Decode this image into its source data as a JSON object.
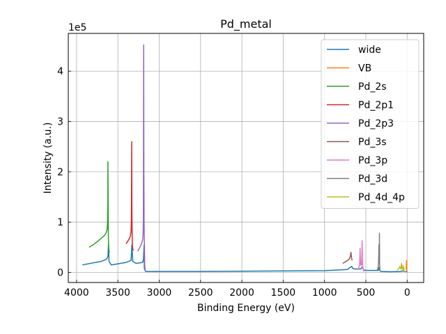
{
  "chart_data": {
    "type": "line",
    "title": "Pd_metal",
    "xlabel": "Binding Energy (eV)",
    "ylabel": "Intensity (a.u.)",
    "y_offset_label": "1e5",
    "xlim": [
      4100,
      -200
    ],
    "ylim": [
      -0.2,
      4.75
    ],
    "x_reversed": true,
    "x_ticks": [
      4000,
      3500,
      3000,
      2500,
      2000,
      1500,
      1000,
      500,
      0
    ],
    "x_tick_labels": [
      "4000",
      "3500",
      "3000",
      "2500",
      "2000",
      "1500",
      "1000",
      "500",
      "0"
    ],
    "y_ticks": [
      0,
      1,
      2,
      3,
      4
    ],
    "y_tick_labels": [
      "0",
      "1",
      "2",
      "3",
      "4"
    ],
    "grid": true,
    "legend_position": "top-right",
    "y_units_note": "values in units of 1e5",
    "series": [
      {
        "name": "wide",
        "color": "#1f77b4",
        "x": [
          3930,
          3800,
          3700,
          3640,
          3620,
          3613,
          3608,
          3580,
          3400,
          3340,
          3330,
          3320,
          3280,
          3200,
          3190,
          3183,
          3180,
          3170,
          3160,
          3100,
          2500,
          2000,
          1500,
          1000,
          720,
          700,
          670,
          660,
          640,
          560,
          540,
          530,
          500,
          350,
          340,
          335,
          330,
          320,
          200,
          80,
          60,
          40,
          20,
          0
        ],
        "y": [
          0.15,
          0.19,
          0.22,
          0.26,
          0.32,
          0.6,
          0.22,
          0.15,
          0.2,
          0.24,
          0.55,
          0.22,
          0.18,
          0.2,
          0.26,
          0.55,
          0.08,
          0.03,
          0.02,
          0.02,
          0.02,
          0.025,
          0.03,
          0.035,
          0.06,
          0.09,
          0.12,
          0.08,
          0.07,
          0.07,
          0.12,
          0.05,
          0.04,
          0.04,
          0.1,
          0.05,
          0.04,
          0.02,
          0.015,
          0.02,
          0.03,
          0.025,
          0.02,
          0.015
        ]
      },
      {
        "name": "VB",
        "color": "#ff7f0e",
        "x": [
          14,
          12,
          10,
          8,
          6,
          4,
          2,
          0
        ],
        "y": [
          0.06,
          0.08,
          0.15,
          0.24,
          0.08,
          0.05,
          0.04,
          0.03
        ]
      },
      {
        "name": "Pd_2s",
        "color": "#2ca02c",
        "x": [
          3850,
          3800,
          3750,
          3700,
          3660,
          3640,
          3630,
          3625,
          3622,
          3620,
          3618,
          3615,
          3612,
          3608,
          3605,
          3600
        ],
        "y": [
          0.5,
          0.55,
          0.61,
          0.68,
          0.74,
          0.8,
          0.85,
          1.0,
          1.4,
          2.2,
          1.3,
          0.7,
          0.5,
          0.44,
          0.42,
          0.4
        ]
      },
      {
        "name": "Pd_2p1",
        "color": "#d62728",
        "x": [
          3400,
          3380,
          3360,
          3350,
          3345,
          3340,
          3337,
          3335,
          3333,
          3330,
          3327,
          3325,
          3322,
          3320,
          3315,
          3310
        ],
        "y": [
          0.57,
          0.62,
          0.68,
          0.72,
          0.76,
          0.82,
          1.0,
          1.4,
          2.6,
          1.2,
          0.7,
          0.55,
          0.5,
          0.47,
          0.45,
          0.44
        ]
      },
      {
        "name": "Pd_2p3",
        "color": "#9467bd",
        "x": [
          3260,
          3240,
          3220,
          3210,
          3200,
          3195,
          3192,
          3190,
          3188,
          3185,
          3183,
          3180,
          3178,
          3175,
          3172,
          3170
        ],
        "y": [
          0.42,
          0.48,
          0.55,
          0.6,
          0.65,
          0.75,
          1.0,
          2.0,
          4.52,
          2.0,
          1.0,
          0.6,
          0.4,
          0.15,
          0.05,
          0.03
        ]
      },
      {
        "name": "Pd_3s",
        "color": "#8c564b",
        "x": [
          780,
          760,
          740,
          720,
          705,
          695,
          688,
          684,
          680,
          676,
          672,
          668,
          665
        ],
        "y": [
          0.18,
          0.2,
          0.22,
          0.24,
          0.26,
          0.29,
          0.32,
          0.36,
          0.4,
          0.33,
          0.28,
          0.25,
          0.24
        ]
      },
      {
        "name": "Pd_3p",
        "color": "#e377c2",
        "x": [
          600,
          590,
          580,
          575,
          572,
          570,
          567,
          565,
          560,
          555,
          550,
          547,
          545,
          542,
          540,
          535,
          530,
          525,
          520
        ],
        "y": [
          0.05,
          0.08,
          0.12,
          0.18,
          0.3,
          0.48,
          0.32,
          0.18,
          0.14,
          0.16,
          0.22,
          0.35,
          0.63,
          0.35,
          0.15,
          0.08,
          0.05,
          0.03,
          0.02
        ]
      },
      {
        "name": "Pd_3d",
        "color": "#7f7f7f",
        "x": [
          360,
          355,
          350,
          346,
          344,
          342,
          340,
          339,
          338,
          337,
          336,
          335,
          334,
          333,
          330,
          325
        ],
        "y": [
          0.05,
          0.08,
          0.12,
          0.2,
          0.35,
          0.55,
          0.32,
          0.2,
          0.18,
          0.25,
          0.45,
          0.78,
          0.4,
          0.15,
          0.06,
          0.03
        ]
      },
      {
        "name": "Pd_4d_4p",
        "color": "#bcbd22",
        "x": [
          120,
          110,
          100,
          95,
          90,
          85,
          80,
          75,
          70,
          65,
          60,
          55,
          52,
          50,
          48,
          45,
          42,
          40,
          38,
          35,
          30,
          25,
          20
        ],
        "y": [
          0.05,
          0.06,
          0.08,
          0.1,
          0.12,
          0.09,
          0.07,
          0.08,
          0.18,
          0.1,
          0.07,
          0.06,
          0.09,
          0.14,
          0.07,
          0.05,
          0.06,
          0.1,
          0.05,
          0.03,
          0.02,
          0.02,
          0.01
        ]
      }
    ]
  }
}
